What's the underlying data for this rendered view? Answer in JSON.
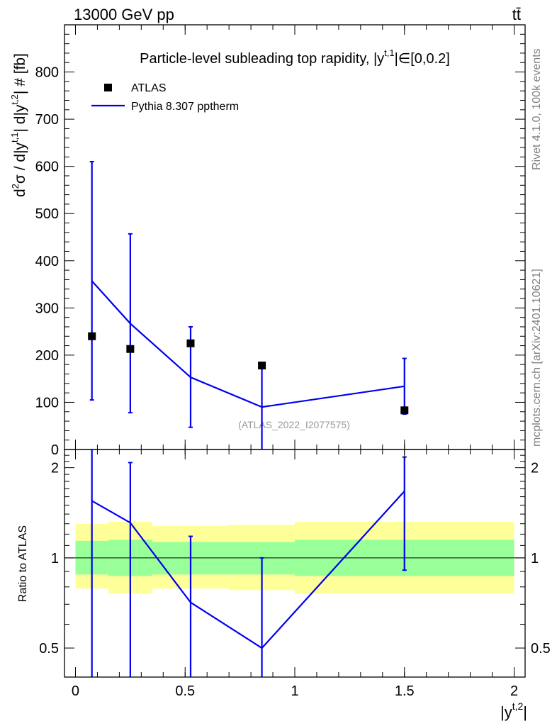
{
  "header": {
    "energy_label": "13000 GeV pp",
    "process_label": "tt̄"
  },
  "side_labels": {
    "rivet": "Rivet 4.1.0,  100k events",
    "mcplots": "mcplots.cern.ch [arXiv:2401.10621]"
  },
  "colors": {
    "data": "#000000",
    "mc": "#0000ee",
    "band_inner": "#99ff99",
    "band_outer": "#ffff99",
    "watermark": "#999999"
  },
  "chart_data": [
    {
      "type": "scatter",
      "panel": "main",
      "title": "Particle-level subleading top rapidity, |y^{t,1}|∈[0,0.2]",
      "title_prefix": "Particle-level subleading top rapidity, |y",
      "title_sup": "t,1",
      "title_suffix": "|∈[0,0.2]",
      "ylabel": "d²σ / d|y^{t,1}| d|y^{t,2}| # [fb]",
      "ylabel_parts": {
        "d": "d",
        "sup2": "2",
        "sigma_part": "σ / d|y",
        "sup_t1": "t,1",
        "mid": "| d|y",
        "sup_t2": "t,2",
        "tail": "| # [fb]"
      },
      "xlim": [
        -0.05,
        2.05
      ],
      "ylim": [
        0,
        900
      ],
      "y_ticks": [
        0,
        100,
        200,
        300,
        400,
        500,
        600,
        700,
        800
      ],
      "y_tick_labels": [
        "0",
        "100",
        "200",
        "300",
        "400",
        "500",
        "600",
        "700",
        "800"
      ],
      "watermark": "(ATLAS_2022_I2077575)",
      "legend": [
        {
          "name": "ATLAS",
          "marker": "square"
        },
        {
          "name": "Pythia 8.307 pptherm",
          "marker": "line"
        }
      ],
      "series": [
        {
          "name": "ATLAS",
          "style": "markers",
          "x": [
            0.075,
            0.25,
            0.525,
            0.85,
            1.5
          ],
          "y": [
            240,
            213,
            225,
            178,
            83
          ],
          "y_err_low": [
            0,
            0,
            0,
            0,
            0
          ],
          "y_err_high": [
            0,
            0,
            0,
            0,
            0
          ]
        },
        {
          "name": "Pythia 8.307 pptherm",
          "style": "line",
          "x": [
            0.075,
            0.25,
            0.525,
            0.85,
            1.5
          ],
          "y": [
            357,
            267,
            153,
            90,
            134
          ],
          "y_low": [
            105,
            78,
            47,
            0,
            75
          ],
          "y_high": [
            610,
            457,
            260,
            180,
            193
          ]
        }
      ]
    },
    {
      "type": "line",
      "panel": "ratio",
      "ylabel": "Ratio to ATLAS",
      "xlabel": "|y^{t,2}|",
      "xlabel_parts": {
        "base": "|y",
        "sup": "t,2",
        "tail": "|"
      },
      "scale": "log",
      "xlim": [
        -0.05,
        2.05
      ],
      "ylim": [
        0.4,
        2.3
      ],
      "x_ticks": [
        0,
        0.5,
        1,
        1.5,
        2
      ],
      "x_tick_labels": [
        "0",
        "0.5",
        "1",
        "1.5",
        "2"
      ],
      "y_ticks": [
        0.5,
        1,
        2
      ],
      "y_tick_labels": [
        "0.5",
        "1",
        "2"
      ],
      "bands": [
        {
          "x_low": 0,
          "x_high": 0.15,
          "inner": [
            0.88,
            1.14
          ],
          "outer": [
            0.79,
            1.3
          ]
        },
        {
          "x_low": 0.15,
          "x_high": 0.35,
          "inner": [
            0.87,
            1.15
          ],
          "outer": [
            0.76,
            1.32
          ]
        },
        {
          "x_low": 0.35,
          "x_high": 0.7,
          "inner": [
            0.88,
            1.13
          ],
          "outer": [
            0.79,
            1.28
          ]
        },
        {
          "x_low": 0.7,
          "x_high": 1.0,
          "inner": [
            0.88,
            1.13
          ],
          "outer": [
            0.78,
            1.29
          ]
        },
        {
          "x_low": 1.0,
          "x_high": 2.0,
          "inner": [
            0.87,
            1.15
          ],
          "outer": [
            0.76,
            1.32
          ]
        }
      ],
      "series": [
        {
          "name": "Pythia 8.307 pptherm",
          "x": [
            0.075,
            0.25,
            0.525,
            0.85,
            1.5
          ],
          "y": [
            1.55,
            1.31,
            0.71,
            0.5,
            1.67
          ],
          "y_low": [
            0.4,
            0.35,
            0.35,
            0.35,
            0.91
          ],
          "y_high": [
            2.3,
            2.08,
            1.18,
            1.0,
            2.17
          ]
        }
      ]
    }
  ]
}
